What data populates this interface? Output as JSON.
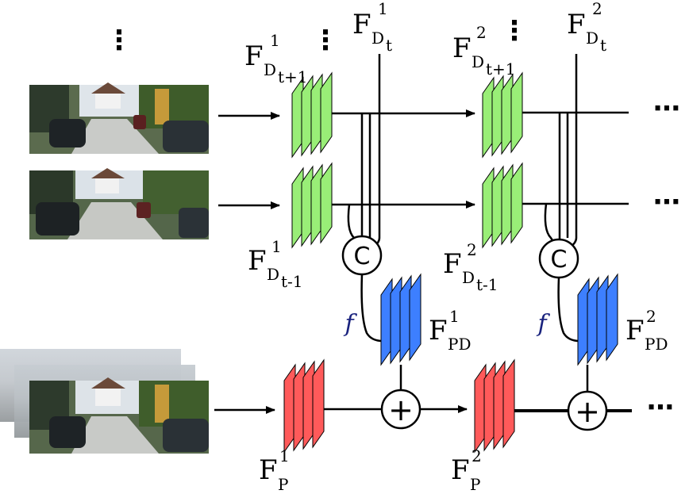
{
  "labels": {
    "fd_t1_next": {
      "base": "F",
      "sub": "D",
      "subsub": "t+1",
      "sup": "1"
    },
    "fd_t1": {
      "base": "F",
      "sub": "D",
      "subsub": "t",
      "sup": "1"
    },
    "fd_t2_next": {
      "base": "F",
      "sub": "D",
      "subsub": "t+1",
      "sup": "2"
    },
    "fd_t2": {
      "base": "F",
      "sub": "D",
      "subsub": "t",
      "sup": "2"
    },
    "fd_t1_prev": {
      "base": "F",
      "sub": "D",
      "subsub": "t-1",
      "sup": "1"
    },
    "fd_t2_prev": {
      "base": "F",
      "sub": "D",
      "subsub": "t-1",
      "sup": "2"
    },
    "fpd_1": {
      "base": "F",
      "sub": "PD",
      "sup": "1"
    },
    "fpd_2": {
      "base": "F",
      "sub": "PD",
      "sup": "2"
    },
    "fp_1": {
      "base": "F",
      "sub": "P",
      "sup": "1"
    },
    "fp_2": {
      "base": "F",
      "sub": "P",
      "sup": "2"
    }
  },
  "operators": {
    "concat": "C",
    "add": "+",
    "func": "f"
  },
  "ellipsis": "⋯",
  "vdots": "⋮",
  "colors": {
    "depth_feature": "#99ee77",
    "pose_depth_feature": "#3d7fff",
    "pose_feature": "#ff5a5a"
  }
}
